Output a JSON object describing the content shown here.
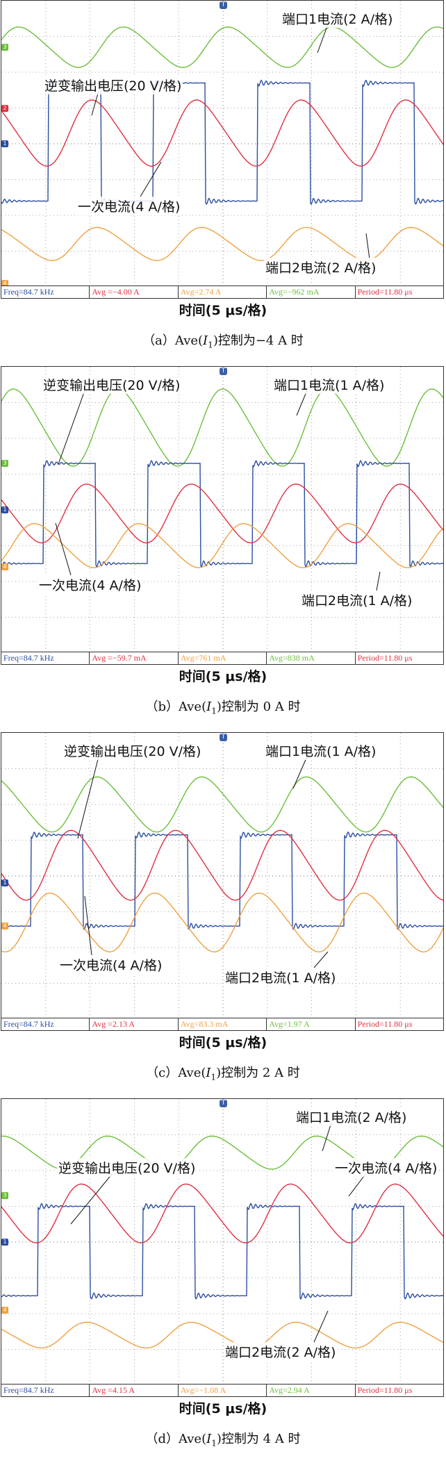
{
  "colors": {
    "green": "#6bbf3a",
    "blue": "#2b4ea0",
    "red": "#e03040",
    "orange": "#f0a040",
    "grid": "#888888"
  },
  "x_axis_label": "时间(5 μs/格)",
  "chart_data": [
    {
      "type": "line",
      "caption_prefix": "（a）Ave(",
      "caption_var": "I",
      "caption_sub": "1",
      "caption_suffix": ")控制为−4 A 时",
      "annotations": {
        "port1": "端口1电流(2 A/格)",
        "inverter": "逆变输出电压(20 V/格)",
        "primary": "一次电流(4 A/格)",
        "port2": "端口2电流(2 A/格)"
      },
      "status": {
        "freq": "Freq=84.7 kHz",
        "avg1": "Avg =−4.00 A",
        "avg2": "Avg=2.74 A",
        "avg3": "Avg=−962 mA",
        "period": "Period=11.80 μs"
      },
      "period_div": 2.36,
      "series": [
        {
          "channel": "green",
          "type": "sine",
          "center_div": 1.3,
          "amp_div": 0.55,
          "phase": 0.05
        },
        {
          "channel": "blue",
          "type": "square",
          "high_div": 2.3,
          "low_div": 5.6,
          "duty": 0.5,
          "phase": 0.55
        },
        {
          "channel": "red",
          "type": "sine",
          "center_div": 3.7,
          "amp_div": 0.9,
          "phase": 0.35
        },
        {
          "channel": "orange",
          "type": "sine",
          "center_div": 6.8,
          "amp_div": 0.45,
          "phase": 0.3
        }
      ],
      "channel_marks": [
        {
          "channel": "green",
          "div": 1.3,
          "label": "3"
        },
        {
          "channel": "red",
          "div": 3.0,
          "label": "2"
        },
        {
          "channel": "blue",
          "div": 4.0,
          "label": "1"
        },
        {
          "channel": "orange",
          "div": 7.9,
          "label": "4"
        }
      ]
    },
    {
      "type": "line",
      "caption_prefix": "（b）Ave(",
      "caption_var": "I",
      "caption_sub": "1",
      "caption_suffix": ")控制为 0 A 时",
      "annotations": {
        "port1": "端口1电流(1 A/格)",
        "inverter": "逆变输出电压(20 V/格)",
        "primary": "一次电流(4 A/格)",
        "port2": "端口2电流(1 A/格)"
      },
      "status": {
        "freq": "Freq=84.7 kHz",
        "avg1": "Avg =−59.7 mA",
        "avg2": "Avg=761 mA",
        "avg3": "Avg=838 mA",
        "period": "Period=11.80 μs"
      },
      "period_div": 2.36,
      "series": [
        {
          "channel": "green",
          "type": "sine",
          "center_div": 1.7,
          "amp_div": 1.05,
          "phase": 0.1
        },
        {
          "channel": "blue",
          "type": "square",
          "high_div": 2.7,
          "low_div": 5.5,
          "duty": 0.5,
          "phase": 0.6
        },
        {
          "channel": "red",
          "type": "sine",
          "center_div": 4.1,
          "amp_div": 0.8,
          "phase": 0.4
        },
        {
          "channel": "orange",
          "type": "sine",
          "center_div": 5.0,
          "amp_div": 0.6,
          "phase": 0.9
        }
      ],
      "channel_marks": [
        {
          "channel": "green",
          "div": 2.7,
          "label": "3"
        },
        {
          "channel": "blue",
          "div": 4.0,
          "label": "1"
        },
        {
          "channel": "orange",
          "div": 5.6,
          "label": "4"
        }
      ]
    },
    {
      "type": "line",
      "caption_prefix": "（c）Ave(",
      "caption_var": "I",
      "caption_sub": "1",
      "caption_suffix": ")控制为 2 A 时",
      "annotations": {
        "port1": "端口1电流(1 A/格)",
        "inverter": "逆变输出电压(20 V/格)",
        "primary": "一次电流(4 A/格)",
        "port2": "端口2电流(1 A/格)"
      },
      "status": {
        "freq": "Freq=84.7 kHz",
        "avg1": "Avg =2.13 A",
        "avg2": "Avg=83.3 mA",
        "avg3": "Avg=1.97 A",
        "period": "Period=11.80 μs"
      },
      "period_div": 2.36,
      "series": [
        {
          "channel": "green",
          "type": "sine",
          "center_div": 2.0,
          "amp_div": 0.75,
          "phase": 0.3
        },
        {
          "channel": "blue",
          "type": "square",
          "high_div": 2.85,
          "low_div": 5.4,
          "duty": 0.5,
          "phase": 0.72
        },
        {
          "channel": "red",
          "type": "sine",
          "center_div": 3.7,
          "amp_div": 0.95,
          "phase": 0.55
        },
        {
          "channel": "orange",
          "type": "sine",
          "center_div": 5.3,
          "amp_div": 0.8,
          "phase": 0.75
        }
      ],
      "channel_marks": [
        {
          "channel": "blue",
          "div": 4.2,
          "label": "1"
        },
        {
          "channel": "orange",
          "div": 5.4,
          "label": "4"
        }
      ]
    },
    {
      "type": "line",
      "caption_prefix": "（d）Ave(",
      "caption_var": "I",
      "caption_sub": "1",
      "caption_suffix": ")控制为 4 A 时",
      "annotations": {
        "port1": "端口1电流(2 A/格)",
        "inverter": "逆变输出电压(20 V/格)",
        "primary": "一次电流(4 A/格)",
        "port2": "端口2电流(2 A/格)"
      },
      "status": {
        "freq": "Freq=84.7 kHz",
        "avg1": "Avg =4.15 A",
        "avg2": "Avg=−1.08 A",
        "avg3": "Avg=2.94 A",
        "period": "Period=11.80 μs"
      },
      "period_div": 2.36,
      "series": [
        {
          "channel": "green",
          "type": "sine",
          "center_div": 1.5,
          "amp_div": 0.45,
          "phase": 0.2
        },
        {
          "channel": "blue",
          "type": "square",
          "high_div": 3.0,
          "low_div": 5.5,
          "duty": 0.5,
          "phase": 0.65
        },
        {
          "channel": "red",
          "type": "sine",
          "center_div": 3.2,
          "amp_div": 0.8,
          "phase": 0.45
        },
        {
          "channel": "orange",
          "type": "sine",
          "center_div": 6.6,
          "amp_div": 0.35,
          "phase": 0.4
        }
      ],
      "channel_marks": [
        {
          "channel": "green",
          "div": 2.7,
          "label": "3"
        },
        {
          "channel": "blue",
          "div": 4.0,
          "label": "1"
        },
        {
          "channel": "orange",
          "div": 5.9,
          "label": "4"
        }
      ]
    }
  ]
}
